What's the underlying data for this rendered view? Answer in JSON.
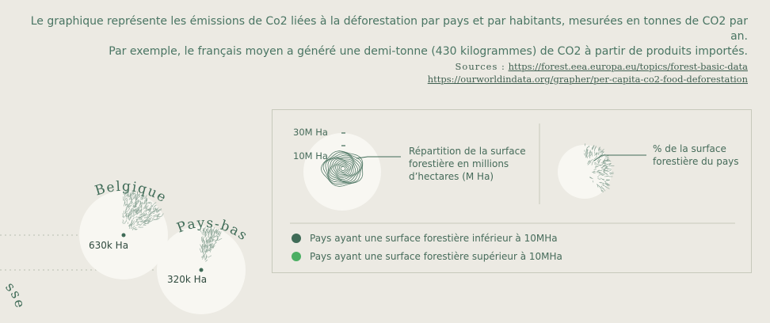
{
  "intro": {
    "line1": "Le graphique représente les émissions de Co2 liées à la déforestation par pays et par habitants, mesurées en tonnes de CO2 par an.",
    "line2": "Par exemple, le français moyen a généré une demi-tonne (430 kilogrammes) de CO2 à partir de produits importés."
  },
  "sources": {
    "label": "Sources :",
    "link1": "https://forest.eea.europa.eu/topics/forest-basic-data",
    "link2": "https://ourworldindata.org/grapher/per-capita-co2-food-deforestation"
  },
  "legend": {
    "scale_30": "30M Ha",
    "scale_10": "10M Ha",
    "area_desc": [
      "Répartition de la surface",
      "forestière en millions",
      "d’hectares (M Ha)"
    ],
    "pct_desc": [
      "% de la surface",
      "forestière du pays"
    ],
    "categories": [
      {
        "label": "Pays ayant une surface forestière inférieur à 10MHa",
        "color": "#3f6b57"
      },
      {
        "label": "Pays ayant une surface forestière supérieur à 10MHa",
        "color": "#4caf64"
      }
    ]
  },
  "colors": {
    "background": "#eceae3",
    "disc": "#f8f7f2",
    "dark_green": "#3f6b57",
    "light_green": "#4caf64"
  },
  "chart_data": {
    "type": "scatter",
    "series": [
      {
        "country": "Belgique",
        "forest_area_label": "630k Ha",
        "forest_area_mha": 0.63
      },
      {
        "country": "Pays-bas",
        "forest_area_label": "320k Ha",
        "forest_area_mha": 0.32
      }
    ]
  }
}
